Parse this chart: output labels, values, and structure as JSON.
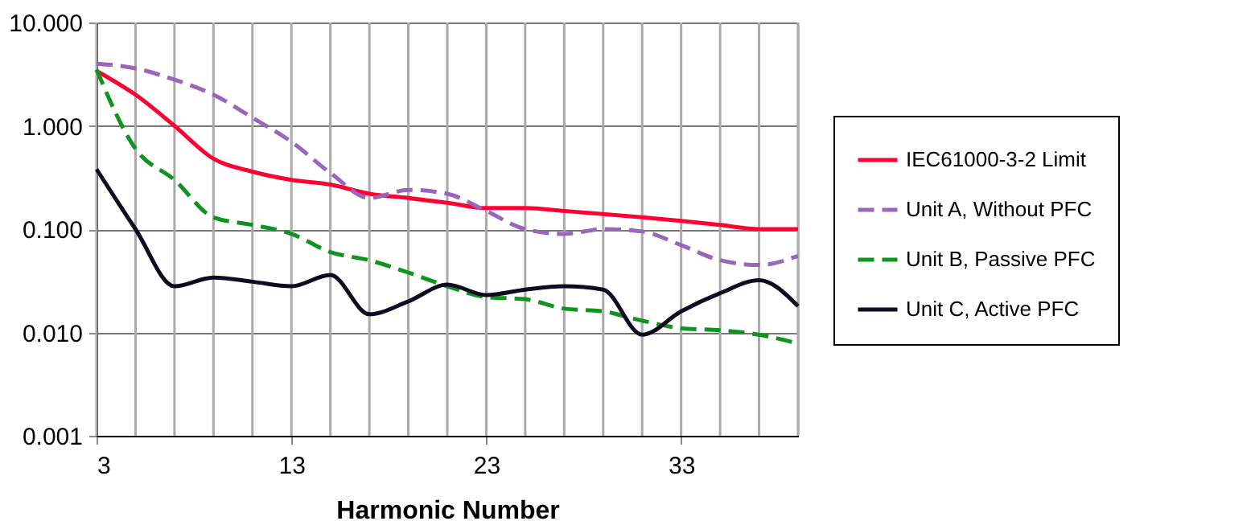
{
  "chart_data": {
    "type": "line",
    "xlabel": "Harmonic Number",
    "x": [
      3,
      5,
      7,
      9,
      11,
      13,
      15,
      17,
      19,
      21,
      23,
      25,
      27,
      29,
      31,
      33,
      35,
      37,
      39
    ],
    "series": [
      {
        "name": "IEC61000-3-2 Limit",
        "color": "#ff0033",
        "line_style": "solid",
        "values": [
          3.4,
          2.0,
          1.0,
          0.48,
          0.36,
          0.3,
          0.27,
          0.22,
          0.2,
          0.18,
          0.16,
          0.16,
          0.15,
          0.14,
          0.13,
          0.12,
          0.11,
          0.1,
          0.1
        ]
      },
      {
        "name": "Unit A, Without PFC",
        "color": "#9966bb",
        "line_style": "dashed",
        "values": [
          4.0,
          3.6,
          2.8,
          2.0,
          1.2,
          0.7,
          0.35,
          0.2,
          0.24,
          0.22,
          0.15,
          0.1,
          0.09,
          0.1,
          0.095,
          0.07,
          0.05,
          0.045,
          0.055
        ]
      },
      {
        "name": "Unit B, Passive PFC",
        "color": "#11931f",
        "line_style": "dashed",
        "values": [
          3.5,
          0.6,
          0.3,
          0.13,
          0.11,
          0.09,
          0.06,
          0.05,
          0.038,
          0.028,
          0.022,
          0.021,
          0.017,
          0.016,
          0.013,
          0.011,
          0.0105,
          0.0095,
          0.0078
        ]
      },
      {
        "name": "Unit C, Active PFC",
        "color": "#110b22",
        "line_style": "solid",
        "values": [
          0.38,
          0.1,
          0.028,
          0.034,
          0.031,
          0.028,
          0.036,
          0.015,
          0.02,
          0.029,
          0.023,
          0.026,
          0.028,
          0.026,
          0.0095,
          0.016,
          0.024,
          0.032,
          0.018
        ]
      }
    ],
    "xlim": [
      3,
      39
    ],
    "xticks": [
      3,
      13,
      23,
      33
    ],
    "ylim": [
      0.001,
      10
    ],
    "log": true,
    "yticks": [
      {
        "value": 0.001,
        "label": "0.001"
      },
      {
        "value": 0.01,
        "label": "0.010"
      },
      {
        "value": 0.1,
        "label": "0.100"
      },
      {
        "value": 1,
        "label": "1.000"
      },
      {
        "value": 10,
        "label": "10.000"
      }
    ],
    "grid": true,
    "legend": "right",
    "marker": "none"
  }
}
